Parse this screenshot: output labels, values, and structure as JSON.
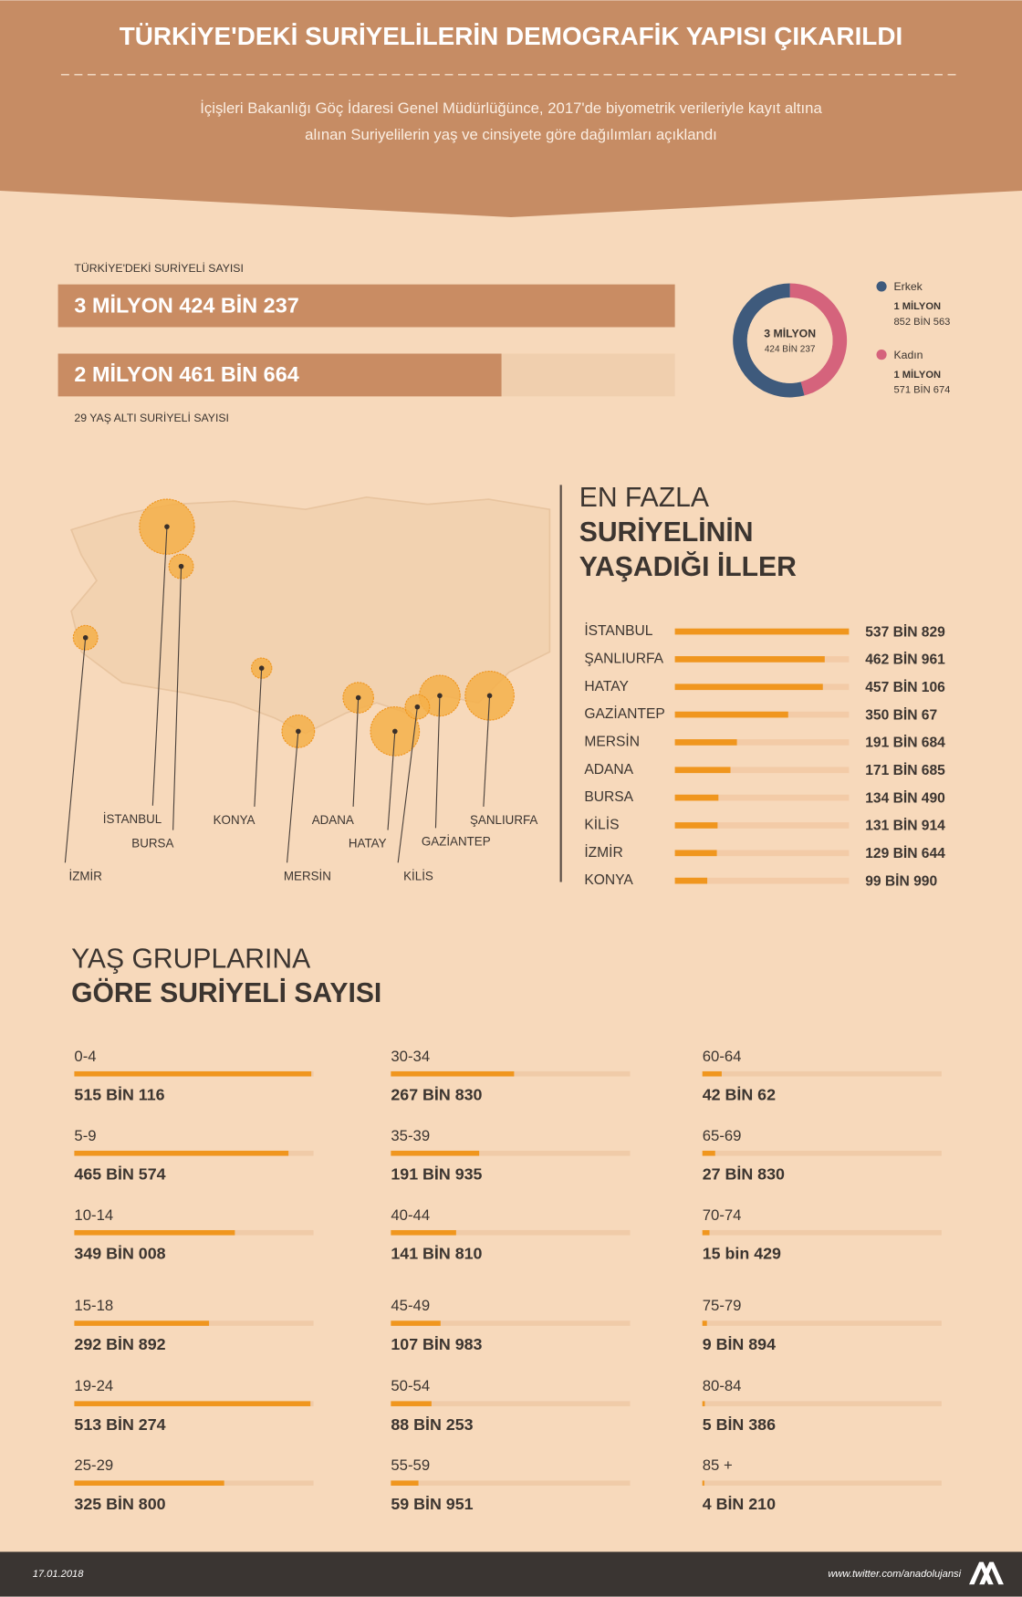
{
  "header": {
    "title": "TÜRKİYE'DEKİ SURİYELİLERİN DEMOGRAFİK YAPISI ÇIKARILDI",
    "subtitle_lines": [
      "İçişleri Bakanlığı Göç İdaresi Genel Müdürlüğünce, 2017'de biyometrik verileriyle kayıt altına",
      "alınan Suriyelilerin yaş ve cinsiyete göre dağılımları açıklandı"
    ]
  },
  "totals": {
    "xlim": [
      0,
      3424237
    ],
    "color": "#c98c63",
    "track": "#f0cfae",
    "total_label": "TÜRKİYE'DEKİ SURİYELİ SAYISI",
    "total": {
      "value": 3424237,
      "value_label": "3 MİLYON 424 BİN 237"
    },
    "under29_label": "29 YAŞ ALTI SURİYELİ SAYISI",
    "under29": {
      "value": 2461664,
      "value_label": "2 MİLYON 461 BİN 664"
    }
  },
  "gender": {
    "type": "pie",
    "center_lines": [
      "3 MİLYON",
      "424 BİN 237"
    ],
    "series": [
      {
        "name": "Kadın",
        "color": "#d5637c",
        "value": 1571674,
        "value_lines": [
          "1 MİLYON",
          "571 BİN 674"
        ]
      },
      {
        "name": "Erkek",
        "color": "#3e5a7c",
        "value": 1852563,
        "value_lines": [
          "1 MİLYON",
          "852 BİN 563"
        ]
      }
    ]
  },
  "provinces": {
    "title_lines": [
      "EN FAZLA",
      "SURİYELİNİN",
      "YAŞADIĞI İLLER"
    ],
    "xlim": [
      0,
      537829
    ],
    "color": "#f0961e",
    "track": "#f3cba7",
    "items": [
      {
        "name": "İSTANBUL",
        "value": 537829,
        "value_label": "537 BİN 829"
      },
      {
        "name": "ŞANLIURFA",
        "value": 462961,
        "value_label": "462 BİN 961"
      },
      {
        "name": "HATAY",
        "value": 457106,
        "value_label": "457 BİN 106"
      },
      {
        "name": "GAZİANTEP",
        "value": 350067,
        "value_label": "350 BİN 67"
      },
      {
        "name": "MERSİN",
        "value": 191684,
        "value_label": "191 BİN 684"
      },
      {
        "name": "ADANA",
        "value": 171685,
        "value_label": "171 BİN 685"
      },
      {
        "name": "BURSA",
        "value": 134490,
        "value_label": "134 BİN 490"
      },
      {
        "name": "KİLİS",
        "value": 131914,
        "value_label": "131 BİN 914"
      },
      {
        "name": "İZMİR",
        "value": 129644,
        "value_label": "129 BİN 644"
      },
      {
        "name": "KONYA",
        "value": 99990,
        "value_label": "99 BİN 990"
      }
    ]
  },
  "ages": {
    "title_lines": [
      "YAŞ GRUPLARINA",
      "GÖRE SURİYELİ SAYISI"
    ],
    "xlim": [
      0,
      520000
    ],
    "color": "#f0961e",
    "track": "#f0cba8",
    "items": [
      {
        "name": "0-4",
        "value": 515116,
        "value_label": "515 BİN 116"
      },
      {
        "name": "5-9",
        "value": 465574,
        "value_label": "465 BİN 574"
      },
      {
        "name": "10-14",
        "value": 349008,
        "value_label": "349 BİN 008"
      },
      {
        "name": "15-18",
        "value": 292892,
        "value_label": "292 BİN 892"
      },
      {
        "name": "19-24",
        "value": 513274,
        "value_label": "513 BİN 274"
      },
      {
        "name": "25-29",
        "value": 325800,
        "value_label": "325 BİN 800"
      },
      {
        "name": "30-34",
        "value": 267830,
        "value_label": "267 BİN 830"
      },
      {
        "name": "35-39",
        "value": 191935,
        "value_label": "191 BİN 935"
      },
      {
        "name": "40-44",
        "value": 141810,
        "value_label": "141 BİN 810"
      },
      {
        "name": "45-49",
        "value": 107983,
        "value_label": "107 BİN 983"
      },
      {
        "name": "50-54",
        "value": 88253,
        "value_label": "88 BİN 253"
      },
      {
        "name": "55-59",
        "value": 59951,
        "value_label": "59 BİN 951"
      },
      {
        "name": "60-64",
        "value": 42062,
        "value_label": "42 BİN 62"
      },
      {
        "name": "65-69",
        "value": 27830,
        "value_label": "27 BİN 830"
      },
      {
        "name": "70-74",
        "value": 15429,
        "value_label": "15 bin 429"
      },
      {
        "name": "75-79",
        "value": 9894,
        "value_label": "9 BİN 894"
      },
      {
        "name": "80-84",
        "value": 5386,
        "value_label": "5 BİN 386"
      },
      {
        "name": "85 +",
        "value": 4210,
        "value_label": "4 BİN 210"
      }
    ]
  },
  "footer": {
    "date": "17.01.2018",
    "source": "www.twitter.com/anadolujansi"
  }
}
